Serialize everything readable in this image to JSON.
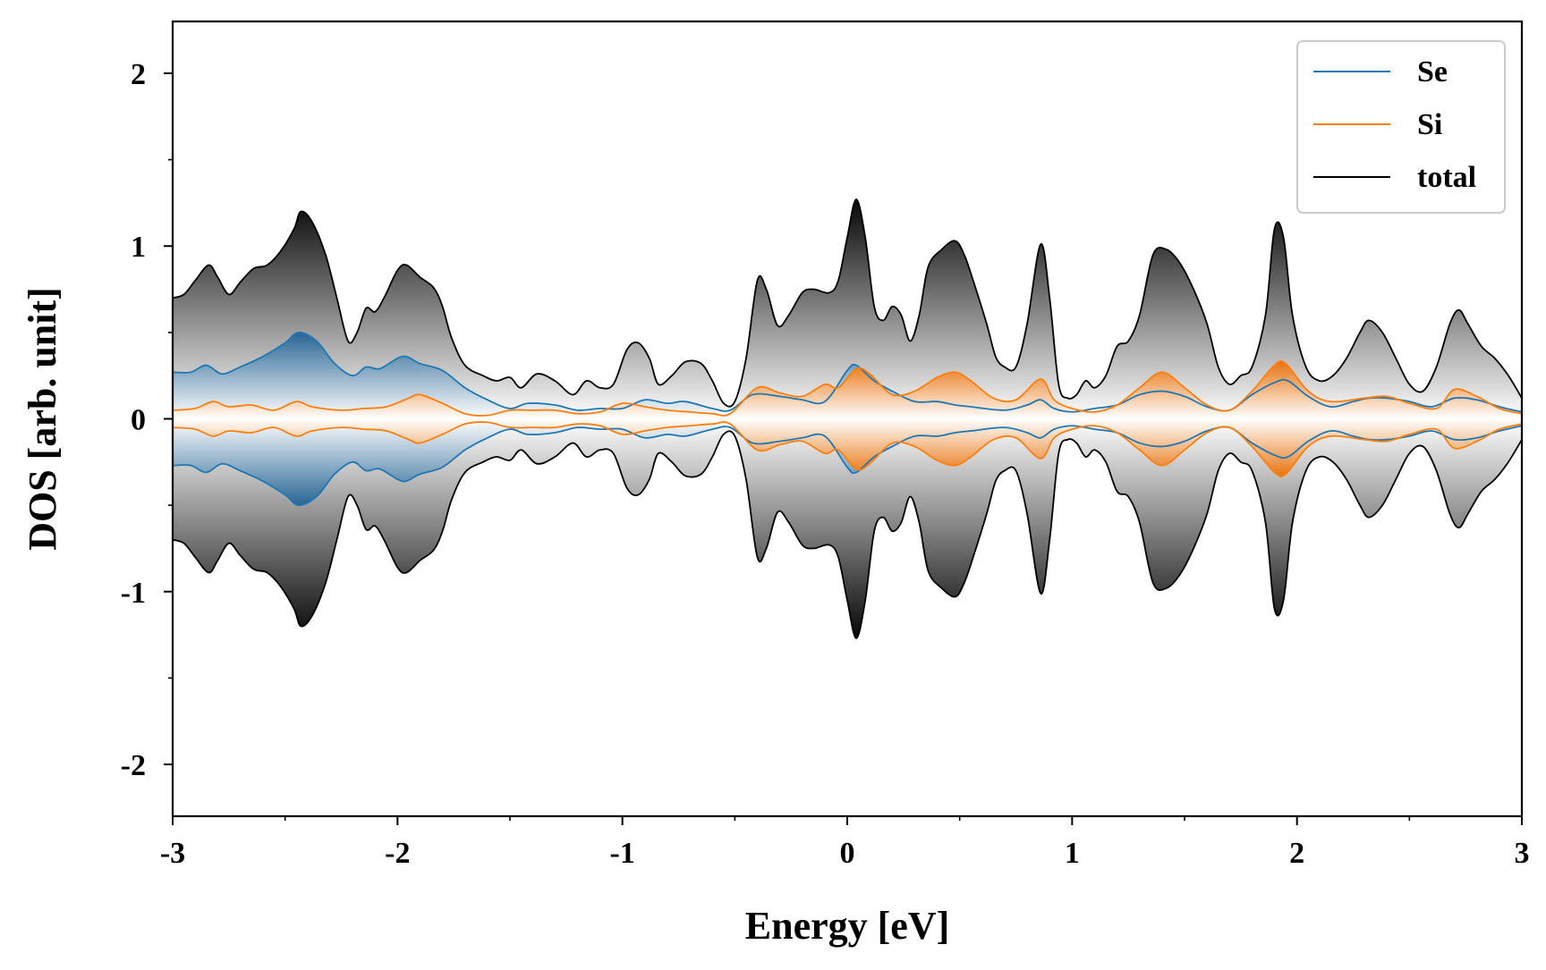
{
  "chart_data": {
    "type": "area",
    "xlabel": "Energy [eV]",
    "ylabel": "DOS [arb. unit]",
    "xlim": [
      -3,
      3
    ],
    "ylim": [
      -2.3,
      2.3
    ],
    "x_ticks": [
      -3,
      -2,
      -1,
      0,
      1,
      2,
      3
    ],
    "x_tick_labels": [
      "-3",
      "-2",
      "-1",
      "0",
      "1",
      "2",
      "3"
    ],
    "y_ticks": [
      -2,
      -1,
      0,
      1,
      2
    ],
    "y_tick_labels": [
      "-2",
      "-1",
      "0",
      "1",
      "2"
    ],
    "mirrored_about_zero": true,
    "grid": false,
    "legend_position": "top-right",
    "series": [
      {
        "name": "Se",
        "color": "#1f77b4",
        "points": [
          [
            -3,
            0.27
          ],
          [
            -2.92,
            0.27
          ],
          [
            -2.85,
            0.31
          ],
          [
            -2.78,
            0.26
          ],
          [
            -2.7,
            0.3
          ],
          [
            -2.6,
            0.36
          ],
          [
            -2.5,
            0.44
          ],
          [
            -2.44,
            0.5
          ],
          [
            -2.36,
            0.45
          ],
          [
            -2.28,
            0.32
          ],
          [
            -2.2,
            0.25
          ],
          [
            -2.14,
            0.3
          ],
          [
            -2.08,
            0.29
          ],
          [
            -2.0,
            0.35
          ],
          [
            -1.96,
            0.36
          ],
          [
            -1.9,
            0.32
          ],
          [
            -1.8,
            0.28
          ],
          [
            -1.7,
            0.18
          ],
          [
            -1.6,
            0.11
          ],
          [
            -1.5,
            0.06
          ],
          [
            -1.42,
            0.09
          ],
          [
            -1.3,
            0.08
          ],
          [
            -1.2,
            0.05
          ],
          [
            -1.1,
            0.06
          ],
          [
            -1.0,
            0.06
          ],
          [
            -0.9,
            0.11
          ],
          [
            -0.8,
            0.09
          ],
          [
            -0.72,
            0.1
          ],
          [
            -0.6,
            0.06
          ],
          [
            -0.52,
            0.05
          ],
          [
            -0.42,
            0.14
          ],
          [
            -0.3,
            0.13
          ],
          [
            -0.2,
            0.11
          ],
          [
            -0.1,
            0.1
          ],
          [
            0.0,
            0.28
          ],
          [
            0.04,
            0.31
          ],
          [
            0.12,
            0.22
          ],
          [
            0.2,
            0.16
          ],
          [
            0.3,
            0.1
          ],
          [
            0.4,
            0.1
          ],
          [
            0.48,
            0.08
          ],
          [
            0.55,
            0.07
          ],
          [
            0.7,
            0.05
          ],
          [
            0.8,
            0.08
          ],
          [
            0.86,
            0.11
          ],
          [
            0.92,
            0.06
          ],
          [
            1.0,
            0.04
          ],
          [
            1.1,
            0.06
          ],
          [
            1.2,
            0.08
          ],
          [
            1.3,
            0.14
          ],
          [
            1.4,
            0.16
          ],
          [
            1.5,
            0.13
          ],
          [
            1.6,
            0.07
          ],
          [
            1.7,
            0.05
          ],
          [
            1.8,
            0.14
          ],
          [
            1.9,
            0.21
          ],
          [
            1.96,
            0.22
          ],
          [
            2.05,
            0.13
          ],
          [
            2.15,
            0.07
          ],
          [
            2.25,
            0.1
          ],
          [
            2.32,
            0.12
          ],
          [
            2.4,
            0.12
          ],
          [
            2.5,
            0.1
          ],
          [
            2.6,
            0.07
          ],
          [
            2.7,
            0.12
          ],
          [
            2.8,
            0.11
          ],
          [
            2.9,
            0.07
          ],
          [
            3.0,
            0.04
          ]
        ]
      },
      {
        "name": "Si",
        "color": "#ff7f0e",
        "points": [
          [
            -3,
            0.05
          ],
          [
            -2.9,
            0.06
          ],
          [
            -2.82,
            0.1
          ],
          [
            -2.75,
            0.07
          ],
          [
            -2.65,
            0.08
          ],
          [
            -2.55,
            0.05
          ],
          [
            -2.45,
            0.1
          ],
          [
            -2.38,
            0.07
          ],
          [
            -2.25,
            0.05
          ],
          [
            -2.15,
            0.06
          ],
          [
            -2.05,
            0.07
          ],
          [
            -1.95,
            0.12
          ],
          [
            -1.9,
            0.14
          ],
          [
            -1.8,
            0.09
          ],
          [
            -1.7,
            0.03
          ],
          [
            -1.6,
            0.02
          ],
          [
            -1.5,
            0.05
          ],
          [
            -1.4,
            0.05
          ],
          [
            -1.3,
            0.05
          ],
          [
            -1.2,
            0.03
          ],
          [
            -1.1,
            0.04
          ],
          [
            -1.0,
            0.09
          ],
          [
            -0.9,
            0.07
          ],
          [
            -0.8,
            0.05
          ],
          [
            -0.7,
            0.04
          ],
          [
            -0.6,
            0.03
          ],
          [
            -0.52,
            0.03
          ],
          [
            -0.4,
            0.18
          ],
          [
            -0.3,
            0.15
          ],
          [
            -0.2,
            0.13
          ],
          [
            -0.1,
            0.2
          ],
          [
            -0.04,
            0.18
          ],
          [
            0.04,
            0.29
          ],
          [
            0.1,
            0.26
          ],
          [
            0.2,
            0.14
          ],
          [
            0.3,
            0.16
          ],
          [
            0.4,
            0.24
          ],
          [
            0.48,
            0.27
          ],
          [
            0.55,
            0.22
          ],
          [
            0.65,
            0.12
          ],
          [
            0.75,
            0.11
          ],
          [
            0.86,
            0.23
          ],
          [
            0.92,
            0.11
          ],
          [
            1.0,
            0.06
          ],
          [
            1.1,
            0.04
          ],
          [
            1.2,
            0.08
          ],
          [
            1.3,
            0.18
          ],
          [
            1.4,
            0.27
          ],
          [
            1.5,
            0.18
          ],
          [
            1.6,
            0.08
          ],
          [
            1.7,
            0.05
          ],
          [
            1.8,
            0.16
          ],
          [
            1.9,
            0.31
          ],
          [
            1.95,
            0.32
          ],
          [
            2.05,
            0.16
          ],
          [
            2.15,
            0.1
          ],
          [
            2.3,
            0.12
          ],
          [
            2.4,
            0.13
          ],
          [
            2.5,
            0.09
          ],
          [
            2.62,
            0.06
          ],
          [
            2.7,
            0.17
          ],
          [
            2.8,
            0.13
          ],
          [
            2.9,
            0.06
          ],
          [
            3.0,
            0.03
          ]
        ]
      },
      {
        "name": "total",
        "color": "#000000",
        "points": [
          [
            -3,
            0.7
          ],
          [
            -2.95,
            0.72
          ],
          [
            -2.9,
            0.8
          ],
          [
            -2.84,
            0.89
          ],
          [
            -2.8,
            0.82
          ],
          [
            -2.75,
            0.72
          ],
          [
            -2.7,
            0.79
          ],
          [
            -2.64,
            0.87
          ],
          [
            -2.58,
            0.89
          ],
          [
            -2.52,
            0.97
          ],
          [
            -2.46,
            1.1
          ],
          [
            -2.43,
            1.2
          ],
          [
            -2.38,
            1.14
          ],
          [
            -2.32,
            0.95
          ],
          [
            -2.27,
            0.7
          ],
          [
            -2.22,
            0.45
          ],
          [
            -2.18,
            0.5
          ],
          [
            -2.14,
            0.64
          ],
          [
            -2.1,
            0.62
          ],
          [
            -2.06,
            0.7
          ],
          [
            -2.0,
            0.86
          ],
          [
            -1.96,
            0.89
          ],
          [
            -1.9,
            0.82
          ],
          [
            -1.84,
            0.76
          ],
          [
            -1.8,
            0.65
          ],
          [
            -1.76,
            0.47
          ],
          [
            -1.7,
            0.31
          ],
          [
            -1.62,
            0.25
          ],
          [
            -1.56,
            0.22
          ],
          [
            -1.5,
            0.24
          ],
          [
            -1.45,
            0.18
          ],
          [
            -1.38,
            0.26
          ],
          [
            -1.3,
            0.22
          ],
          [
            -1.22,
            0.14
          ],
          [
            -1.16,
            0.22
          ],
          [
            -1.1,
            0.18
          ],
          [
            -1.04,
            0.2
          ],
          [
            -0.98,
            0.4
          ],
          [
            -0.93,
            0.44
          ],
          [
            -0.88,
            0.35
          ],
          [
            -0.84,
            0.2
          ],
          [
            -0.78,
            0.25
          ],
          [
            -0.72,
            0.33
          ],
          [
            -0.65,
            0.32
          ],
          [
            -0.6,
            0.22
          ],
          [
            -0.55,
            0.09
          ],
          [
            -0.5,
            0.1
          ],
          [
            -0.45,
            0.35
          ],
          [
            -0.4,
            0.8
          ],
          [
            -0.36,
            0.75
          ],
          [
            -0.31,
            0.54
          ],
          [
            -0.26,
            0.6
          ],
          [
            -0.2,
            0.73
          ],
          [
            -0.15,
            0.75
          ],
          [
            -0.08,
            0.73
          ],
          [
            -0.04,
            0.8
          ],
          [
            0.0,
            1.05
          ],
          [
            0.04,
            1.27
          ],
          [
            0.08,
            1.05
          ],
          [
            0.12,
            0.65
          ],
          [
            0.16,
            0.57
          ],
          [
            0.2,
            0.65
          ],
          [
            0.24,
            0.6
          ],
          [
            0.28,
            0.45
          ],
          [
            0.32,
            0.6
          ],
          [
            0.36,
            0.88
          ],
          [
            0.42,
            0.98
          ],
          [
            0.48,
            1.03
          ],
          [
            0.52,
            0.95
          ],
          [
            0.56,
            0.8
          ],
          [
            0.62,
            0.55
          ],
          [
            0.66,
            0.36
          ],
          [
            0.7,
            0.3
          ],
          [
            0.75,
            0.3
          ],
          [
            0.8,
            0.55
          ],
          [
            0.86,
            1.01
          ],
          [
            0.9,
            0.7
          ],
          [
            0.94,
            0.2
          ],
          [
            0.98,
            0.12
          ],
          [
            1.02,
            0.14
          ],
          [
            1.06,
            0.22
          ],
          [
            1.1,
            0.18
          ],
          [
            1.15,
            0.25
          ],
          [
            1.2,
            0.42
          ],
          [
            1.25,
            0.45
          ],
          [
            1.3,
            0.6
          ],
          [
            1.36,
            0.95
          ],
          [
            1.42,
            0.98
          ],
          [
            1.48,
            0.9
          ],
          [
            1.54,
            0.75
          ],
          [
            1.6,
            0.55
          ],
          [
            1.65,
            0.3
          ],
          [
            1.7,
            0.2
          ],
          [
            1.75,
            0.25
          ],
          [
            1.8,
            0.3
          ],
          [
            1.86,
            0.6
          ],
          [
            1.9,
            1.1
          ],
          [
            1.94,
            1.05
          ],
          [
            1.98,
            0.6
          ],
          [
            2.04,
            0.3
          ],
          [
            2.1,
            0.22
          ],
          [
            2.16,
            0.25
          ],
          [
            2.22,
            0.35
          ],
          [
            2.28,
            0.5
          ],
          [
            2.32,
            0.57
          ],
          [
            2.38,
            0.5
          ],
          [
            2.44,
            0.35
          ],
          [
            2.5,
            0.2
          ],
          [
            2.56,
            0.16
          ],
          [
            2.62,
            0.3
          ],
          [
            2.68,
            0.55
          ],
          [
            2.72,
            0.63
          ],
          [
            2.76,
            0.55
          ],
          [
            2.82,
            0.42
          ],
          [
            2.88,
            0.35
          ],
          [
            2.94,
            0.25
          ],
          [
            3.0,
            0.12
          ]
        ]
      }
    ]
  }
}
